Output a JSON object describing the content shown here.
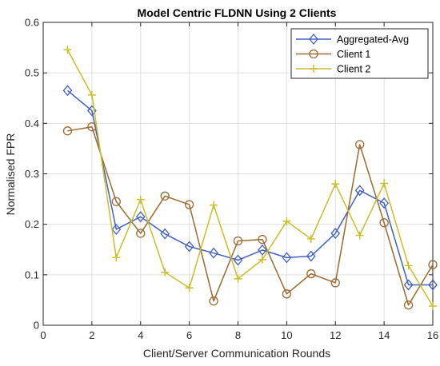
{
  "chart_data": {
    "type": "line",
    "title": "Model Centric FLDNN Using 2 Clients",
    "xlabel": "Client/Server Communication Rounds",
    "ylabel": "Normalised FPR",
    "xlim": [
      0,
      16
    ],
    "ylim": [
      0,
      0.6
    ],
    "xticks": [
      0,
      2,
      4,
      6,
      8,
      10,
      12,
      14,
      16
    ],
    "yticks": [
      0,
      0.1,
      0.2,
      0.3,
      0.4,
      0.5,
      0.6
    ],
    "ytick_labels": [
      "0",
      "0.1",
      "0.2",
      "0.3",
      "0.4",
      "0.5",
      "0.6"
    ],
    "grid": true,
    "legend_position": "top-right",
    "x": [
      1,
      2,
      3,
      4,
      5,
      6,
      7,
      8,
      9,
      10,
      11,
      12,
      13,
      14,
      15,
      16
    ],
    "series": [
      {
        "name": "Aggregated-Avg",
        "color": "#4060c0",
        "marker": "diamond",
        "values": [
          0.465,
          0.425,
          0.19,
          0.215,
          0.181,
          0.156,
          0.143,
          0.129,
          0.149,
          0.134,
          0.137,
          0.182,
          0.267,
          0.242,
          0.08,
          0.08
        ]
      },
      {
        "name": "Client 1",
        "color": "#9b6a2e",
        "marker": "circle",
        "values": [
          0.385,
          0.393,
          0.245,
          0.182,
          0.256,
          0.239,
          0.048,
          0.167,
          0.17,
          0.062,
          0.102,
          0.084,
          0.358,
          0.203,
          0.04,
          0.12
        ]
      },
      {
        "name": "Client 2",
        "color": "#c8be28",
        "marker": "plus",
        "values": [
          0.546,
          0.456,
          0.134,
          0.249,
          0.105,
          0.074,
          0.238,
          0.092,
          0.13,
          0.206,
          0.171,
          0.28,
          0.178,
          0.281,
          0.118,
          0.038
        ]
      }
    ]
  }
}
